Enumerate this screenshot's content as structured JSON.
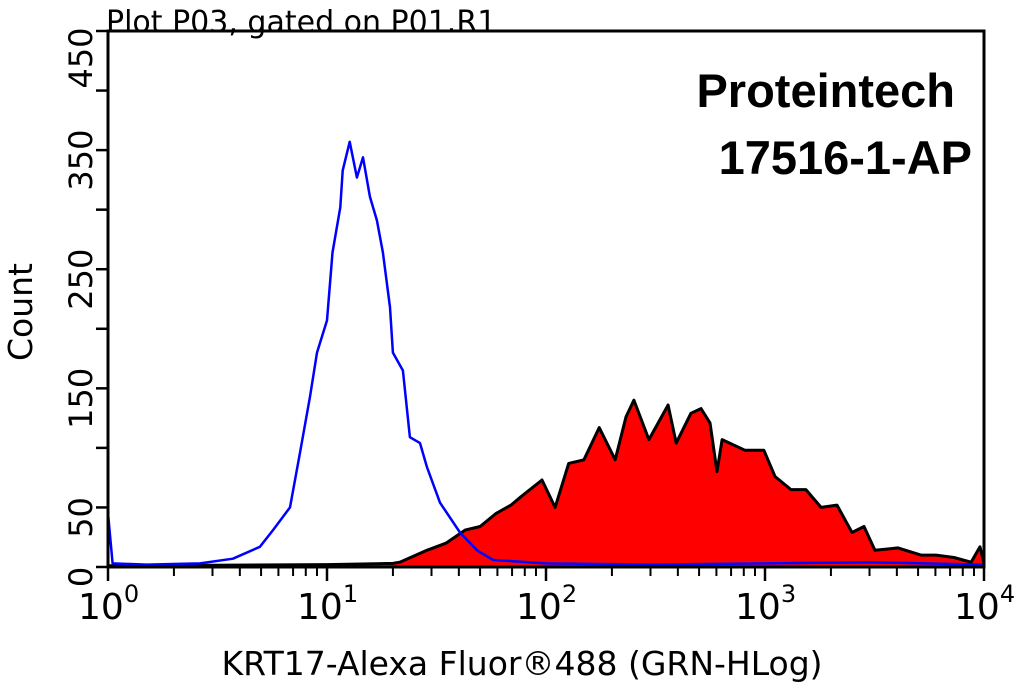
{
  "chart_data": {
    "type": "area",
    "title": "Plot P03, gated on P01.R1",
    "annotations": [
      "Proteintech",
      "17516-1-AP"
    ],
    "xlabel": "KRT17-Alexa Fluor®488 (GRN-HLog)",
    "ylabel": "Count",
    "xscale": "log",
    "xlim": [
      1,
      10000
    ],
    "ylim": [
      0,
      450
    ],
    "x_ticks": [
      {
        "base": "10",
        "exp": "0",
        "value": 1
      },
      {
        "base": "10",
        "exp": "1",
        "value": 10
      },
      {
        "base": "10",
        "exp": "2",
        "value": 100
      },
      {
        "base": "10",
        "exp": "3",
        "value": 1000
      },
      {
        "base": "10",
        "exp": "4",
        "value": 10000
      }
    ],
    "y_tick_values": [
      0,
      50,
      100,
      150,
      200,
      250,
      300,
      350,
      400,
      450
    ],
    "y_tick_labels": [
      {
        "label": "0",
        "value": 0
      },
      {
        "label": "50",
        "value": 50
      },
      {
        "label": "150",
        "value": 150
      },
      {
        "label": "250",
        "value": 250
      },
      {
        "label": "350",
        "value": 350
      },
      {
        "label": "450",
        "value": 450
      }
    ],
    "grid": false,
    "series": [
      {
        "color": "#ff0000",
        "outline": "#000000",
        "filled": true,
        "x": [
          1,
          10,
          20,
          21.5,
          28.6,
          34.9,
          42.7,
          50,
          59.2,
          69.2,
          76.9,
          95.9,
          110,
          127,
          149,
          175,
          207,
          232,
          252,
          295,
          361,
          393,
          459,
          510,
          561,
          604,
          637,
          811,
          989,
          1111,
          1315,
          1538,
          1803,
          2133,
          2496,
          2832,
          3177,
          4047,
          5154,
          6040,
          7295,
          8730,
          9590,
          10000
        ],
        "y": [
          1,
          2,
          3,
          4,
          14,
          20,
          31,
          34,
          45,
          52,
          59,
          73,
          50,
          87,
          90,
          117,
          90,
          126,
          140,
          107,
          136,
          104,
          129,
          133,
          121,
          80,
          107,
          98,
          98,
          76,
          65,
          65,
          50,
          52,
          29,
          34,
          14,
          16,
          10,
          10,
          8,
          4,
          17,
          3
        ]
      },
      {
        "color": "#0000ff",
        "filled": false,
        "x": [
          1,
          1.05,
          1.5,
          2.63,
          3.72,
          4.94,
          5.67,
          6.78,
          7.53,
          8.36,
          9.0,
          10.0,
          10.6,
          11.5,
          11.8,
          12.7,
          13.7,
          14.6,
          15.7,
          16.9,
          18.0,
          19.4,
          20.0,
          22.2,
          23.9,
          26.6,
          28.6,
          32.8,
          40.5,
          48.4,
          57.3,
          100,
          300,
          1000,
          3000,
          10000
        ],
        "y": [
          45,
          3,
          2,
          3,
          7,
          17,
          31,
          50,
          96,
          143,
          180,
          207,
          264,
          302,
          333,
          357,
          327,
          344,
          311,
          291,
          264,
          218,
          180,
          165,
          109,
          104,
          84,
          54,
          29,
          14,
          6,
          3,
          2,
          3,
          4,
          2
        ]
      }
    ]
  }
}
